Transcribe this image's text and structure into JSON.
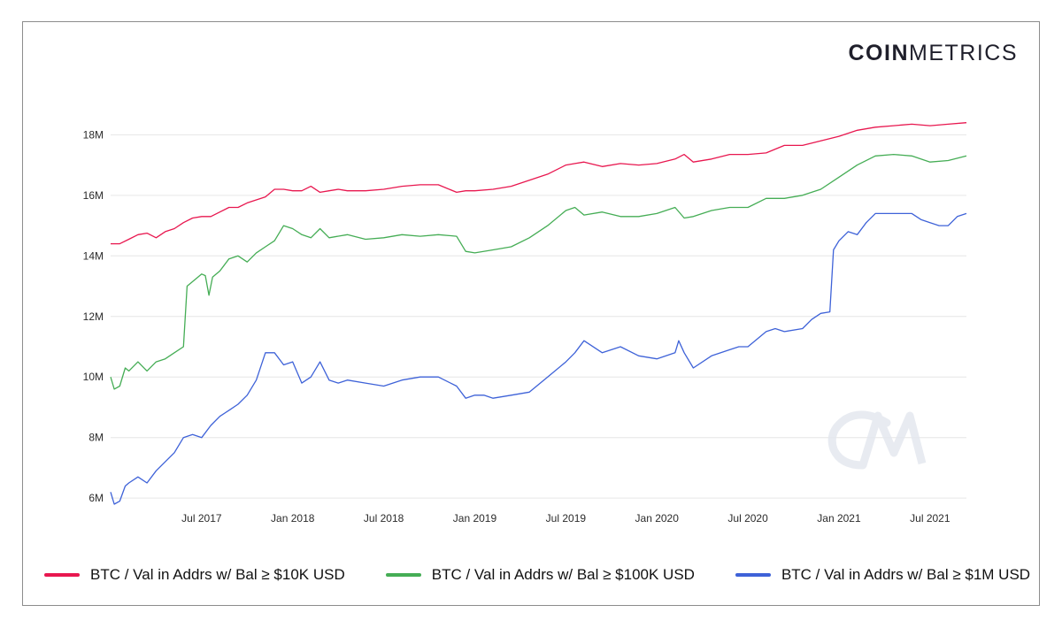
{
  "brand": {
    "bold": "COIN",
    "light": "METRICS"
  },
  "watermark": "CM",
  "colors": {
    "red": "#e8174f",
    "green": "#45ad55",
    "blue": "#3e62d8"
  },
  "chart_data": {
    "type": "line",
    "title": "",
    "xlabel": "",
    "ylabel": "",
    "x_range": [
      2017.0,
      2021.7
    ],
    "ylim": [
      5.8,
      18.8
    ],
    "y_ticks": [
      {
        "value": 6,
        "label": "6M"
      },
      {
        "value": 8,
        "label": "8M"
      },
      {
        "value": 10,
        "label": "10M"
      },
      {
        "value": 12,
        "label": "12M"
      },
      {
        "value": 14,
        "label": "14M"
      },
      {
        "value": 16,
        "label": "16M"
      },
      {
        "value": 18,
        "label": "18M"
      }
    ],
    "x_ticks": [
      {
        "value": 2017.5,
        "label": "Jul 2017"
      },
      {
        "value": 2018.0,
        "label": "Jan 2018"
      },
      {
        "value": 2018.5,
        "label": "Jul 2018"
      },
      {
        "value": 2019.0,
        "label": "Jan 2019"
      },
      {
        "value": 2019.5,
        "label": "Jul 2019"
      },
      {
        "value": 2020.0,
        "label": "Jan 2020"
      },
      {
        "value": 2020.5,
        "label": "Jul 2020"
      },
      {
        "value": 2021.0,
        "label": "Jan 2021"
      },
      {
        "value": 2021.5,
        "label": "Jul 2021"
      }
    ],
    "series": [
      {
        "name": "BTC / Val in Addrs w/ Bal ≥ $10K USD",
        "color": "#e8174f",
        "x": [
          2017.0,
          2017.05,
          2017.1,
          2017.15,
          2017.2,
          2017.25,
          2017.3,
          2017.35,
          2017.4,
          2017.45,
          2017.5,
          2017.55,
          2017.6,
          2017.65,
          2017.7,
          2017.75,
          2017.8,
          2017.85,
          2017.9,
          2017.95,
          2018.0,
          2018.05,
          2018.1,
          2018.15,
          2018.2,
          2018.25,
          2018.3,
          2018.4,
          2018.5,
          2018.6,
          2018.7,
          2018.8,
          2018.9,
          2018.95,
          2019.0,
          2019.1,
          2019.2,
          2019.3,
          2019.4,
          2019.5,
          2019.55,
          2019.6,
          2019.7,
          2019.8,
          2019.9,
          2020.0,
          2020.1,
          2020.15,
          2020.2,
          2020.3,
          2020.4,
          2020.5,
          2020.6,
          2020.7,
          2020.8,
          2020.9,
          2021.0,
          2021.1,
          2021.2,
          2021.3,
          2021.4,
          2021.5,
          2021.6,
          2021.7
        ],
        "values": [
          14.4,
          14.4,
          14.55,
          14.7,
          14.75,
          14.6,
          14.8,
          14.9,
          15.1,
          15.25,
          15.3,
          15.3,
          15.45,
          15.6,
          15.6,
          15.75,
          15.85,
          15.95,
          16.2,
          16.2,
          16.15,
          16.15,
          16.3,
          16.1,
          16.15,
          16.2,
          16.15,
          16.15,
          16.2,
          16.3,
          16.35,
          16.35,
          16.1,
          16.15,
          16.15,
          16.2,
          16.3,
          16.5,
          16.7,
          17.0,
          17.05,
          17.1,
          16.95,
          17.05,
          17.0,
          17.05,
          17.2,
          17.35,
          17.1,
          17.2,
          17.35,
          17.35,
          17.4,
          17.65,
          17.65,
          17.8,
          17.95,
          18.15,
          18.25,
          18.3,
          18.35,
          18.3,
          18.35,
          18.4
        ]
      },
      {
        "name": "BTC / Val in Addrs w/ Bal ≥ $100K USD",
        "color": "#45ad55",
        "x": [
          2017.0,
          2017.02,
          2017.05,
          2017.08,
          2017.1,
          2017.15,
          2017.2,
          2017.25,
          2017.3,
          2017.35,
          2017.4,
          2017.42,
          2017.44,
          2017.5,
          2017.52,
          2017.54,
          2017.56,
          2017.6,
          2017.65,
          2017.7,
          2017.75,
          2017.8,
          2017.85,
          2017.9,
          2017.95,
          2018.0,
          2018.05,
          2018.1,
          2018.15,
          2018.2,
          2018.3,
          2018.4,
          2018.5,
          2018.6,
          2018.7,
          2018.8,
          2018.9,
          2018.95,
          2019.0,
          2019.1,
          2019.2,
          2019.3,
          2019.4,
          2019.5,
          2019.55,
          2019.6,
          2019.7,
          2019.8,
          2019.9,
          2020.0,
          2020.1,
          2020.15,
          2020.2,
          2020.3,
          2020.4,
          2020.5,
          2020.6,
          2020.7,
          2020.8,
          2020.9,
          2021.0,
          2021.1,
          2021.2,
          2021.3,
          2021.4,
          2021.5,
          2021.6,
          2021.7
        ],
        "values": [
          10.0,
          9.6,
          9.7,
          10.3,
          10.2,
          10.5,
          10.2,
          10.5,
          10.6,
          10.8,
          11.0,
          13.0,
          13.1,
          13.4,
          13.35,
          12.7,
          13.3,
          13.5,
          13.9,
          14.0,
          13.8,
          14.1,
          14.3,
          14.5,
          15.0,
          14.9,
          14.7,
          14.6,
          14.9,
          14.6,
          14.7,
          14.55,
          14.6,
          14.7,
          14.65,
          14.7,
          14.65,
          14.15,
          14.1,
          14.2,
          14.3,
          14.6,
          15.0,
          15.5,
          15.6,
          15.35,
          15.45,
          15.3,
          15.3,
          15.4,
          15.6,
          15.25,
          15.3,
          15.5,
          15.6,
          15.6,
          15.9,
          15.9,
          16.0,
          16.2,
          16.6,
          17.0,
          17.3,
          17.35,
          17.3,
          17.1,
          17.15,
          17.3
        ]
      },
      {
        "name": "BTC / Val in Addrs w/ Bal ≥ $1M USD",
        "color": "#3e62d8",
        "x": [
          2017.0,
          2017.02,
          2017.05,
          2017.08,
          2017.1,
          2017.15,
          2017.2,
          2017.25,
          2017.3,
          2017.35,
          2017.4,
          2017.45,
          2017.5,
          2017.55,
          2017.6,
          2017.65,
          2017.7,
          2017.75,
          2017.8,
          2017.85,
          2017.9,
          2017.95,
          2018.0,
          2018.05,
          2018.1,
          2018.15,
          2018.2,
          2018.25,
          2018.3,
          2018.4,
          2018.5,
          2018.6,
          2018.7,
          2018.8,
          2018.9,
          2018.95,
          2019.0,
          2019.05,
          2019.1,
          2019.2,
          2019.3,
          2019.4,
          2019.5,
          2019.55,
          2019.6,
          2019.7,
          2019.8,
          2019.9,
          2020.0,
          2020.1,
          2020.12,
          2020.15,
          2020.2,
          2020.3,
          2020.4,
          2020.45,
          2020.5,
          2020.6,
          2020.65,
          2020.7,
          2020.8,
          2020.85,
          2020.9,
          2020.95,
          2020.97,
          2021.0,
          2021.05,
          2021.1,
          2021.15,
          2021.2,
          2021.3,
          2021.4,
          2021.45,
          2021.5,
          2021.55,
          2021.6,
          2021.65,
          2021.7
        ],
        "values": [
          6.2,
          5.8,
          5.9,
          6.4,
          6.5,
          6.7,
          6.5,
          6.9,
          7.2,
          7.5,
          8.0,
          8.1,
          8.0,
          8.4,
          8.7,
          8.9,
          9.1,
          9.4,
          9.9,
          10.8,
          10.8,
          10.4,
          10.5,
          9.8,
          10.0,
          10.5,
          9.9,
          9.8,
          9.9,
          9.8,
          9.7,
          9.9,
          10.0,
          10.0,
          9.7,
          9.3,
          9.4,
          9.4,
          9.3,
          9.4,
          9.5,
          10.0,
          10.5,
          10.8,
          11.2,
          10.8,
          11.0,
          10.7,
          10.6,
          10.8,
          11.2,
          10.8,
          10.3,
          10.7,
          10.9,
          11.0,
          11.0,
          11.5,
          11.6,
          11.5,
          11.6,
          11.9,
          12.1,
          12.15,
          14.2,
          14.5,
          14.8,
          14.7,
          15.1,
          15.4,
          15.4,
          15.4,
          15.2,
          15.1,
          15.0,
          15.0,
          15.3,
          15.4
        ]
      }
    ],
    "legend_position": "bottom"
  }
}
